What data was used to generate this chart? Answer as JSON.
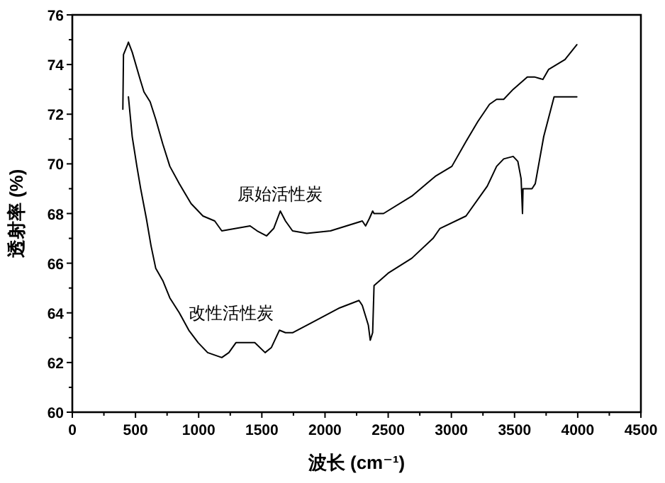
{
  "chart_data": {
    "type": "line",
    "xlabel": "波长 (cm⁻¹)",
    "ylabel": "透射率 (%)",
    "xlim": [
      0,
      4500
    ],
    "ylim": [
      60,
      76
    ],
    "xticks": [
      0,
      500,
      1000,
      1500,
      2000,
      2500,
      3000,
      3500,
      4000,
      4500
    ],
    "yticks": [
      60,
      62,
      64,
      66,
      68,
      70,
      72,
      74,
      76
    ],
    "grid": false,
    "series": [
      {
        "name": "原始活性炭",
        "color": "#000000",
        "x": [
          400,
          405,
          437,
          444,
          474,
          537,
          567,
          616,
          660,
          716,
          772,
          847,
          940,
          1034,
          1127,
          1183,
          1295,
          1407,
          1463,
          1538,
          1594,
          1646,
          1687,
          1743,
          1856,
          2043,
          2295,
          2321,
          2351,
          2377,
          2388,
          2463,
          2687,
          2873,
          3004,
          3116,
          3209,
          3302,
          3358,
          3414,
          3489,
          3601,
          3657,
          3724,
          3769,
          3899,
          3993
        ],
        "values": [
          72.2,
          74.4,
          74.8,
          74.9,
          74.5,
          73.4,
          72.9,
          72.5,
          71.8,
          70.8,
          69.9,
          69.2,
          68.4,
          67.9,
          67.7,
          67.3,
          67.4,
          67.5,
          67.3,
          67.1,
          67.4,
          68.1,
          67.7,
          67.3,
          67.2,
          67.3,
          67.7,
          67.5,
          67.8,
          68.1,
          68.0,
          68.0,
          68.7,
          69.5,
          69.9,
          70.9,
          71.7,
          72.4,
          72.6,
          72.6,
          73.0,
          73.5,
          73.5,
          73.4,
          73.8,
          74.2,
          74.8
        ]
      },
      {
        "name": "改性活性炭",
        "color": "#000000",
        "x": [
          444,
          474,
          511,
          541,
          586,
          623,
          660,
          716,
          772,
          847,
          922,
          996,
          1071,
          1183,
          1239,
          1295,
          1444,
          1526,
          1575,
          1639,
          1687,
          1743,
          1892,
          2116,
          2269,
          2295,
          2343,
          2358,
          2377,
          2388,
          2500,
          2687,
          2855,
          2910,
          3116,
          3284,
          3358,
          3414,
          3489,
          3526,
          3552,
          3563,
          3567,
          3638,
          3664,
          3731,
          3813,
          3993
        ],
        "values": [
          72.7,
          71.1,
          69.9,
          69.0,
          67.8,
          66.7,
          65.8,
          65.3,
          64.6,
          64.0,
          63.3,
          62.8,
          62.4,
          62.2,
          62.4,
          62.8,
          62.8,
          62.4,
          62.6,
          63.3,
          63.2,
          63.2,
          63.6,
          64.2,
          64.5,
          64.3,
          63.5,
          62.9,
          63.2,
          65.1,
          65.6,
          66.2,
          67.0,
          67.4,
          67.9,
          69.1,
          69.9,
          70.2,
          70.3,
          70.1,
          69.4,
          68.0,
          69.0,
          69.0,
          69.2,
          71.1,
          72.7,
          72.7
        ]
      }
    ]
  }
}
